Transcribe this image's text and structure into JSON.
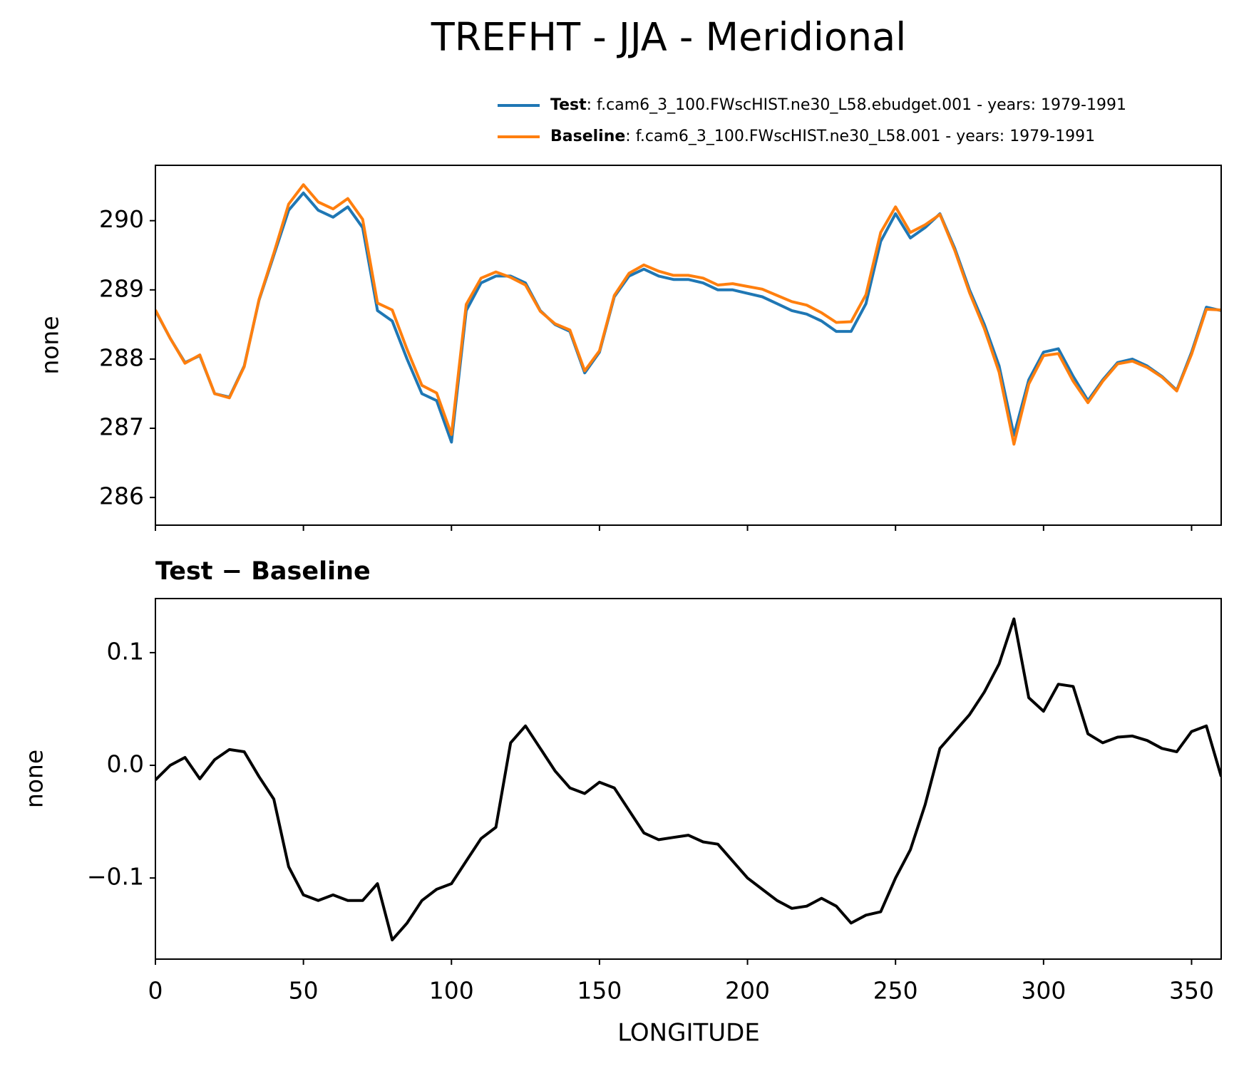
{
  "chart_data": [
    {
      "type": "line",
      "title": "TREFHT - JJA - Meridional",
      "ylabel": "none",
      "x": [
        0,
        5,
        10,
        15,
        20,
        25,
        30,
        35,
        40,
        45,
        50,
        55,
        60,
        65,
        70,
        75,
        80,
        85,
        90,
        95,
        100,
        105,
        110,
        115,
        120,
        125,
        130,
        135,
        140,
        145,
        150,
        155,
        160,
        165,
        170,
        175,
        180,
        185,
        190,
        195,
        200,
        205,
        210,
        215,
        220,
        225,
        230,
        235,
        240,
        245,
        250,
        255,
        260,
        265,
        270,
        275,
        280,
        285,
        290,
        295,
        300,
        305,
        310,
        315,
        320,
        325,
        330,
        335,
        340,
        345,
        350,
        355,
        360
      ],
      "series": [
        {
          "name": "Test",
          "label": ": f.cam6_3_100.FWscHIST.ne30_L58.ebudget.001 - years: 1979-1991",
          "color": "#1f77b4",
          "values": [
            288.7,
            288.3,
            287.95,
            288.05,
            287.5,
            287.45,
            287.9,
            288.85,
            289.5,
            290.15,
            290.4,
            290.15,
            290.05,
            290.2,
            289.9,
            288.7,
            288.55,
            288.0,
            287.5,
            287.4,
            286.8,
            288.7,
            289.1,
            289.2,
            289.2,
            289.1,
            288.7,
            288.5,
            288.4,
            287.8,
            288.1,
            288.9,
            289.2,
            289.3,
            289.2,
            289.15,
            289.15,
            289.1,
            289.0,
            289.0,
            288.95,
            288.9,
            288.8,
            288.7,
            288.65,
            288.55,
            288.4,
            288.4,
            288.8,
            289.7,
            290.1,
            289.75,
            289.9,
            290.1,
            289.6,
            289.0,
            288.5,
            287.9,
            286.9,
            287.7,
            288.1,
            288.15,
            287.75,
            287.4,
            287.7,
            287.95,
            288.0,
            287.9,
            287.75,
            287.55,
            288.1,
            288.75,
            288.7
          ]
        },
        {
          "name": "Baseline",
          "label": ": f.cam6_3_100.FWscHIST.ne30_L58.001 - years: 1979-1991",
          "color": "#ff7f0e",
          "values": [
            288.71,
            288.3,
            287.94,
            288.06,
            287.5,
            287.44,
            287.89,
            288.86,
            289.53,
            290.24,
            290.52,
            290.27,
            290.17,
            290.32,
            290.02,
            288.81,
            288.71,
            288.14,
            287.62,
            287.51,
            286.91,
            288.79,
            289.17,
            289.26,
            289.18,
            289.07,
            288.69,
            288.51,
            288.42,
            287.83,
            288.12,
            288.92,
            289.24,
            289.36,
            289.27,
            289.21,
            289.21,
            289.17,
            289.07,
            289.09,
            289.05,
            289.01,
            288.92,
            288.83,
            288.78,
            288.67,
            288.53,
            288.54,
            288.93,
            289.83,
            290.2,
            289.83,
            289.94,
            290.09,
            289.57,
            288.96,
            288.44,
            287.81,
            286.77,
            287.64,
            288.05,
            288.08,
            287.68,
            287.37,
            287.68,
            287.93,
            287.97,
            287.88,
            287.74,
            287.54,
            288.07,
            288.72,
            288.71
          ]
        }
      ],
      "xlim": [
        0,
        360
      ],
      "xticks": [
        0,
        50,
        100,
        150,
        200,
        250,
        300,
        350
      ],
      "xtick_labels": false,
      "ylim": [
        285.6,
        290.8
      ],
      "yticks": [
        286,
        287,
        288,
        289,
        290
      ]
    },
    {
      "type": "line",
      "subtitle": "Test − Baseline",
      "ylabel": "none",
      "xlabel": "LONGITUDE",
      "x": [
        0,
        5,
        10,
        15,
        20,
        25,
        30,
        35,
        40,
        45,
        50,
        55,
        60,
        65,
        70,
        75,
        80,
        85,
        90,
        95,
        100,
        105,
        110,
        115,
        120,
        125,
        130,
        135,
        140,
        145,
        150,
        155,
        160,
        165,
        170,
        175,
        180,
        185,
        190,
        195,
        200,
        205,
        210,
        215,
        220,
        225,
        230,
        235,
        240,
        245,
        250,
        255,
        260,
        265,
        270,
        275,
        280,
        285,
        290,
        295,
        300,
        305,
        310,
        315,
        320,
        325,
        330,
        335,
        340,
        345,
        350,
        355,
        360
      ],
      "series": [
        {
          "color": "#000000",
          "values": [
            -0.013,
            0.0,
            0.007,
            -0.012,
            0.005,
            0.014,
            0.012,
            -0.01,
            -0.03,
            -0.09,
            -0.115,
            -0.12,
            -0.115,
            -0.12,
            -0.12,
            -0.105,
            -0.155,
            -0.14,
            -0.12,
            -0.11,
            -0.105,
            -0.085,
            -0.065,
            -0.055,
            0.02,
            0.035,
            0.015,
            -0.005,
            -0.02,
            -0.025,
            -0.015,
            -0.02,
            -0.04,
            -0.06,
            -0.066,
            -0.064,
            -0.062,
            -0.068,
            -0.07,
            -0.085,
            -0.1,
            -0.11,
            -0.12,
            -0.127,
            -0.125,
            -0.118,
            -0.125,
            -0.14,
            -0.133,
            -0.13,
            -0.1,
            -0.075,
            -0.035,
            0.015,
            0.03,
            0.045,
            0.065,
            0.09,
            0.13,
            0.06,
            0.048,
            0.072,
            0.07,
            0.028,
            0.02,
            0.025,
            0.026,
            0.022,
            0.015,
            0.012,
            0.03,
            0.035,
            -0.01
          ]
        }
      ],
      "xlim": [
        0,
        360
      ],
      "xticks": [
        0,
        50,
        100,
        150,
        200,
        250,
        300,
        350
      ],
      "xtick_labels": true,
      "ylim": [
        -0.172,
        0.148
      ],
      "yticks": [
        {
          "value": -0.1,
          "label": "−0.1"
        },
        {
          "value": 0,
          "label": "0.0"
        },
        0.1
      ]
    }
  ]
}
